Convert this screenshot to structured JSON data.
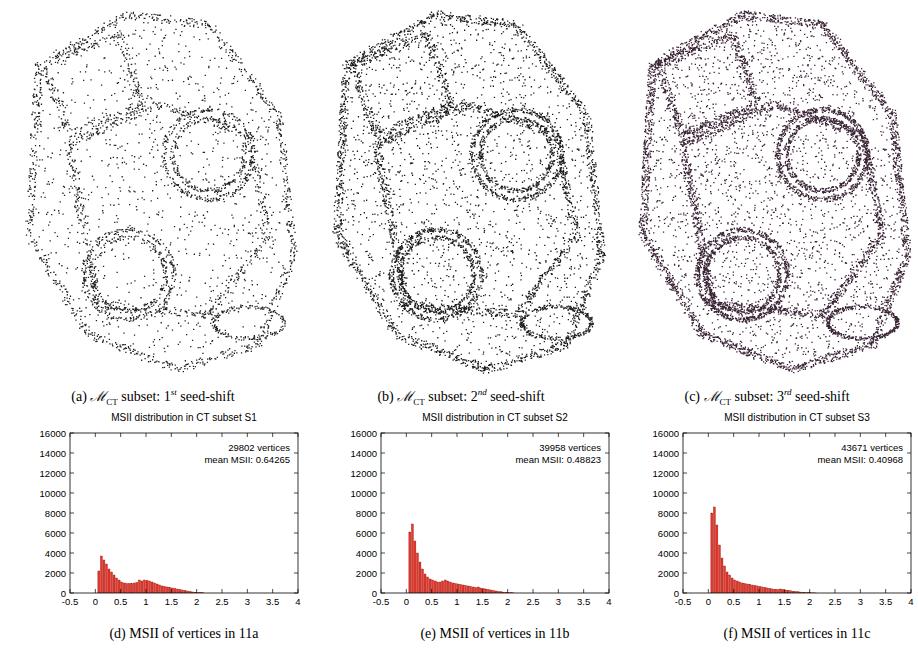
{
  "figures": [
    {
      "caption": {
        "label": "(a)",
        "symbol": "ℳ",
        "symbol_subscript": "CT",
        "text": "subset:",
        "ordinal": "1",
        "ordinal_suffix": "st",
        "suffix": "seed-shift"
      }
    },
    {
      "caption": {
        "label": "(b)",
        "symbol": "ℳ",
        "symbol_subscript": "CT",
        "text": "subset:",
        "ordinal": "2",
        "ordinal_suffix": "nd",
        "suffix": "seed-shift"
      }
    },
    {
      "caption": {
        "label": "(c)",
        "symbol": "ℳ",
        "symbol_subscript": "CT",
        "text": "subset:",
        "ordinal": "3",
        "ordinal_suffix": "rd",
        "suffix": "seed-shift"
      }
    }
  ],
  "chart_data": [
    {
      "type": "histogram",
      "title": "MSII distribution in CT subset S1",
      "caption": "(d) MSII of vertices in 11a",
      "annotations": [
        "29802 vertices",
        "mean MSII: 0.64265"
      ],
      "bins": [
        0.05,
        0.1,
        0.15,
        0.2,
        0.25,
        0.3,
        0.35,
        0.4,
        0.45,
        0.5,
        0.55,
        0.6,
        0.65,
        0.7,
        0.75,
        0.8,
        0.85,
        0.9,
        0.95,
        1.0,
        1.05,
        1.1,
        1.15,
        1.2,
        1.25,
        1.3,
        1.35,
        1.4,
        1.45,
        1.5,
        1.55,
        1.6,
        1.65,
        1.7,
        1.75,
        1.8,
        1.85,
        1.9,
        1.95,
        2.0,
        2.05,
        2.1,
        2.15
      ],
      "values": [
        2200,
        3700,
        3300,
        2900,
        2400,
        2100,
        1800,
        1500,
        1300,
        1100,
        1000,
        950,
        950,
        950,
        1000,
        1050,
        1300,
        1200,
        1300,
        1250,
        1200,
        1100,
        1000,
        900,
        800,
        700,
        650,
        600,
        550,
        500,
        450,
        400,
        350,
        300,
        250,
        200,
        150,
        100,
        80,
        50,
        30,
        20
      ],
      "color": "#e8352a",
      "xlim": [
        -0.5,
        4
      ],
      "xticks": [
        -0.5,
        0,
        0.5,
        1,
        1.5,
        2,
        2.5,
        3,
        3.5,
        4
      ],
      "ylim": [
        0,
        16000
      ],
      "yticks": [
        0,
        2000,
        4000,
        6000,
        8000,
        10000,
        12000,
        14000,
        16000
      ],
      "grid": false
    },
    {
      "type": "histogram",
      "title": "MSII distribution in CT subset S2",
      "caption": "(e) MSII of vertices in 11b",
      "annotations": [
        "39958 vertices",
        "mean MSII: 0.48823"
      ],
      "bins": [
        0.05,
        0.1,
        0.15,
        0.2,
        0.25,
        0.3,
        0.35,
        0.4,
        0.45,
        0.5,
        0.55,
        0.6,
        0.65,
        0.7,
        0.75,
        0.8,
        0.85,
        0.9,
        0.95,
        1.0,
        1.05,
        1.1,
        1.15,
        1.2,
        1.25,
        1.3,
        1.35,
        1.4,
        1.45,
        1.5,
        1.55,
        1.6,
        1.65,
        1.7,
        1.75,
        1.8,
        1.85,
        1.9,
        1.95,
        2.0,
        2.05,
        2.1,
        2.15
      ],
      "values": [
        6100,
        6900,
        5200,
        4000,
        3100,
        2400,
        1900,
        1600,
        1400,
        1300,
        1200,
        1100,
        1100,
        1200,
        1300,
        1200,
        1100,
        1000,
        950,
        900,
        850,
        800,
        750,
        700,
        650,
        600,
        550,
        600,
        500,
        450,
        400,
        350,
        300,
        250,
        200,
        150,
        120,
        80,
        60,
        40,
        20,
        10
      ],
      "color": "#e8352a",
      "xlim": [
        -0.5,
        4
      ],
      "xticks": [
        -0.5,
        0,
        0.5,
        1,
        1.5,
        2,
        2.5,
        3,
        3.5,
        4
      ],
      "ylim": [
        0,
        16000
      ],
      "yticks": [
        0,
        2000,
        4000,
        6000,
        8000,
        10000,
        12000,
        14000,
        16000
      ],
      "grid": false
    },
    {
      "type": "histogram",
      "title": "MSII distribution in CT subset S3",
      "caption": "(f) MSII of vertices in 11c",
      "annotations": [
        "43671 vertices",
        "mean MSII: 0.40968"
      ],
      "bins": [
        0.05,
        0.1,
        0.15,
        0.2,
        0.25,
        0.3,
        0.35,
        0.4,
        0.45,
        0.5,
        0.55,
        0.6,
        0.65,
        0.7,
        0.75,
        0.8,
        0.85,
        0.9,
        0.95,
        1.0,
        1.05,
        1.1,
        1.15,
        1.2,
        1.25,
        1.3,
        1.35,
        1.4,
        1.45,
        1.5,
        1.55,
        1.6,
        1.65,
        1.7,
        1.75,
        1.8,
        1.85,
        1.9,
        1.95,
        2.0,
        2.05,
        2.1,
        2.15
      ],
      "values": [
        8000,
        8600,
        6800,
        4800,
        3500,
        2700,
        2100,
        1800,
        1500,
        1300,
        1200,
        1100,
        1000,
        950,
        900,
        850,
        800,
        750,
        700,
        650,
        600,
        550,
        500,
        450,
        400,
        380,
        360,
        400,
        350,
        300,
        260,
        220,
        180,
        150,
        120,
        90,
        70,
        50,
        35,
        25,
        15,
        8
      ],
      "color": "#e8352a",
      "xlim": [
        -0.5,
        4
      ],
      "xticks": [
        -0.5,
        0,
        0.5,
        1,
        1.5,
        2,
        2.5,
        3,
        3.5,
        4
      ],
      "ylim": [
        0,
        16000
      ],
      "yticks": [
        0,
        2000,
        4000,
        6000,
        8000,
        10000,
        12000,
        14000,
        16000
      ],
      "grid": false
    }
  ]
}
